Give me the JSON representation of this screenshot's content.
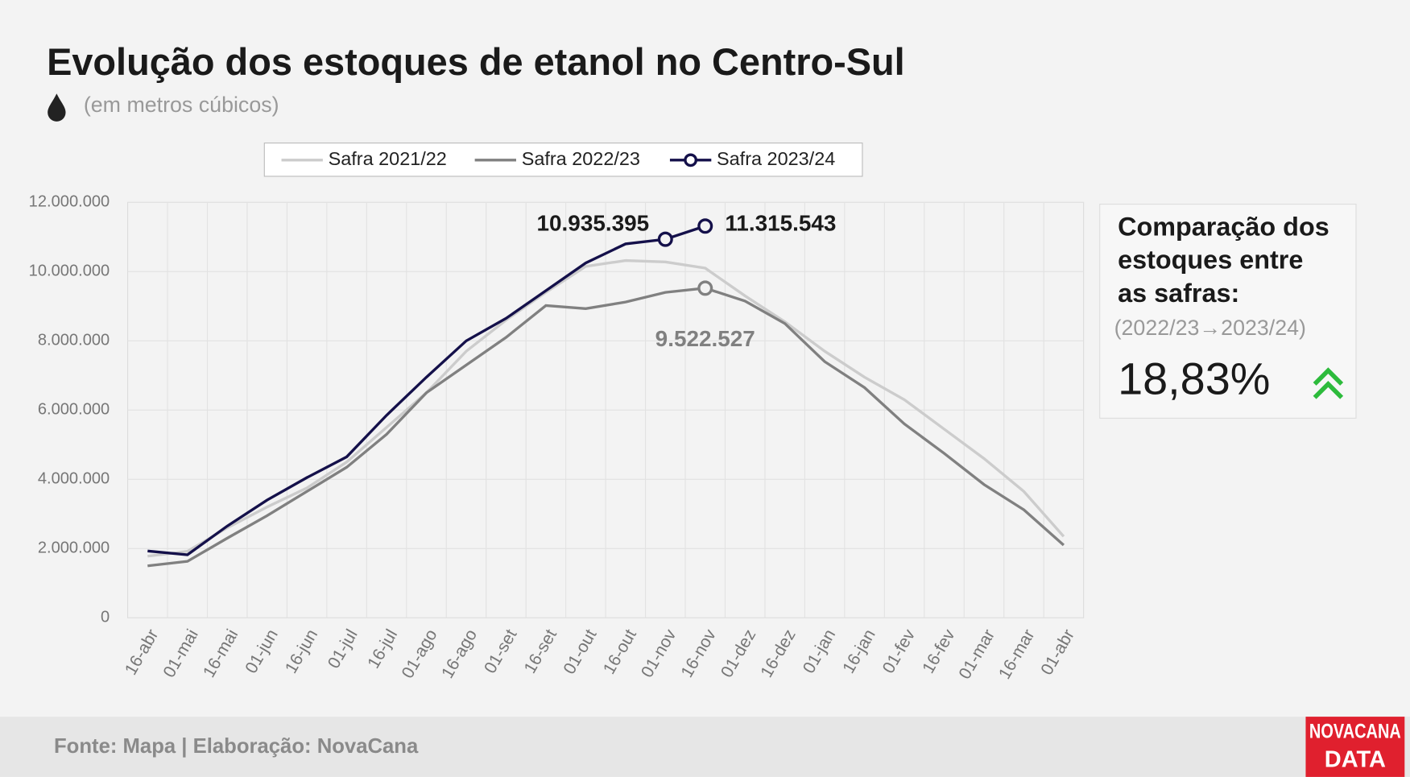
{
  "chart_data": {
    "type": "line",
    "title": "Evolução dos estoques de  etanol no Centro-Sul",
    "subtitle": "(em metros cúbicos)",
    "categories": [
      "16-abr",
      "01-mai",
      "16-mai",
      "01-jun",
      "16-jun",
      "01-jul",
      "16-jul",
      "01-ago",
      "16-ago",
      "01-set",
      "16-set",
      "01-out",
      "16-out",
      "01-nov",
      "16-nov",
      "01-dez",
      "16-dez",
      "01-jan",
      "16-jan",
      "01-fev",
      "16-fev",
      "01-mar",
      "16-mar",
      "01-abr"
    ],
    "series": [
      {
        "name": "Safra 2021/22",
        "color": "#cccccc",
        "values": [
          1780000,
          1920000,
          2600000,
          3200000,
          3750000,
          4500000,
          5500000,
          6500000,
          7700000,
          8600000,
          9400000,
          10150000,
          10320000,
          10280000,
          10100000,
          9300000,
          8550000,
          7700000,
          6950000,
          6300000,
          5450000,
          4600000,
          3650000,
          2350000
        ]
      },
      {
        "name": "Safra 2022/23",
        "color": "#808080",
        "values": [
          1500000,
          1630000,
          2300000,
          2950000,
          3650000,
          4350000,
          5300000,
          6500000,
          7300000,
          8100000,
          9020000,
          8930000,
          9120000,
          9400000,
          9522527,
          9150000,
          8500000,
          7400000,
          6650000,
          5600000,
          4750000,
          3850000,
          3120000,
          2100000
        ],
        "value_labels": [
          null,
          null,
          null,
          null,
          null,
          null,
          null,
          null,
          null,
          null,
          null,
          null,
          null,
          null,
          "9.522.527",
          null,
          null,
          null,
          null,
          null,
          null,
          null,
          null,
          null
        ]
      },
      {
        "name": "Safra 2023/24",
        "color": "#14104a",
        "values": [
          1930000,
          1820000,
          2650000,
          3400000,
          4050000,
          4650000,
          5850000,
          6950000,
          8000000,
          8650000,
          9450000,
          10250000,
          10800000,
          10935395,
          11315543,
          null,
          null,
          null,
          null,
          null,
          null,
          null,
          null,
          null
        ],
        "value_labels": [
          null,
          null,
          null,
          null,
          null,
          null,
          null,
          null,
          null,
          null,
          null,
          null,
          null,
          "10.935.395",
          "11.315.543",
          null,
          null,
          null,
          null,
          null,
          null,
          null,
          null,
          null
        ]
      }
    ],
    "ylim": [
      0,
      12000000
    ],
    "yticks": [
      0,
      {
        "value": 2000000,
        "label": "2.000.000"
      },
      {
        "value": 4000000,
        "label": "4.000.000"
      },
      {
        "value": 6000000,
        "label": "6.000.000"
      },
      {
        "value": 8000000,
        "label": "8.000.000"
      },
      {
        "value": 10000000,
        "label": "10.000.000"
      },
      {
        "value": 12000000,
        "label": "12.000.000"
      }
    ],
    "grid": true,
    "legend": "top"
  },
  "panel": {
    "lines": [
      "Comparação dos",
      "estoques entre",
      "as safras:"
    ],
    "period": "(2022/23→2023/24)",
    "change": "18,83%"
  },
  "footer": {
    "source": "Fonte: Mapa | Elaboração: NovaCana"
  },
  "logo": {
    "line1": "NOVACANA",
    "line2": "DATA"
  }
}
